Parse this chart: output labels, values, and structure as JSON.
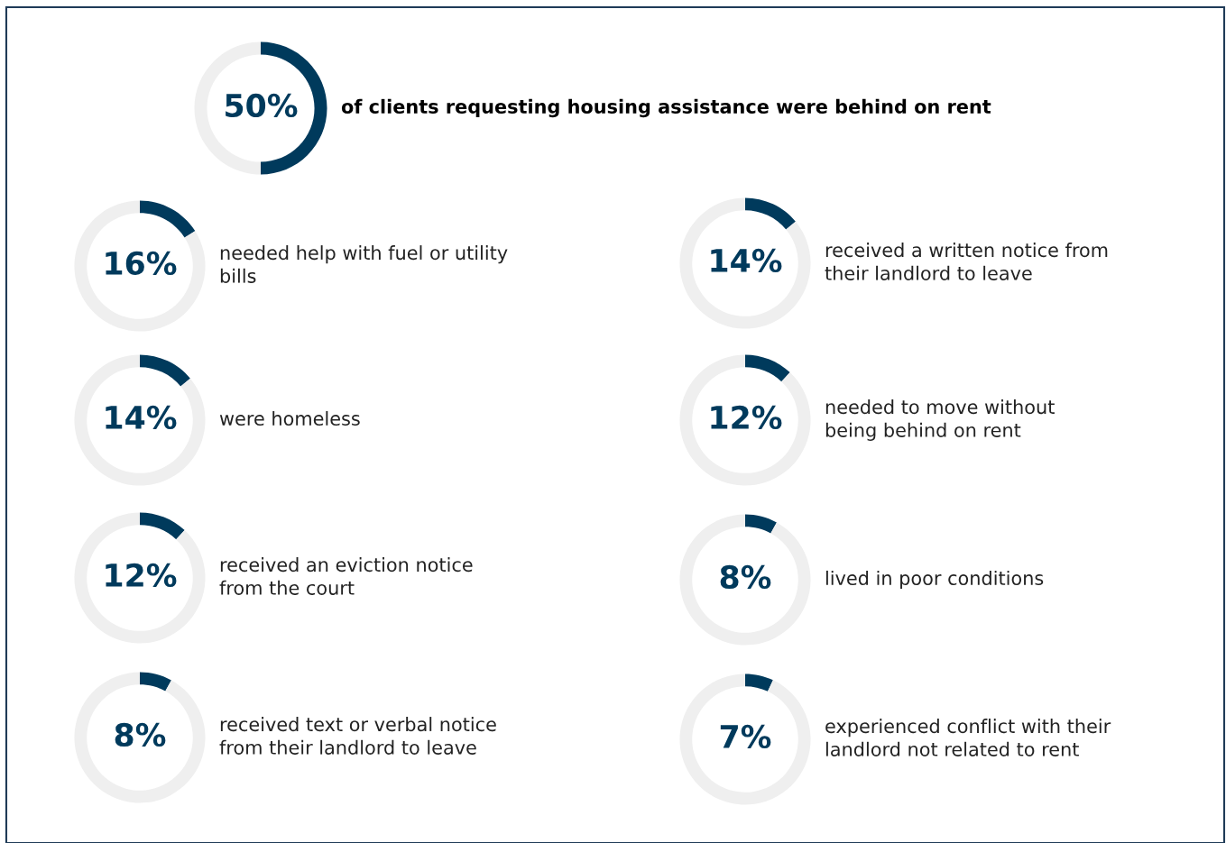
{
  "chart_data": [
    {
      "type": "donut",
      "categories": [
        null,
        null
      ],
      "values": [
        50,
        50
      ],
      "colors": [
        "#003a5c",
        "#efefef"
      ],
      "value_labels": [
        "50%",
        null
      ],
      "annotations": [
        "of clients requesting housing assistance were behind on rent"
      ]
    },
    {
      "type": "donut",
      "categories": [
        null,
        null
      ],
      "values": [
        16,
        84
      ],
      "colors": [
        "#003a5c",
        "#efefef"
      ],
      "value_labels": [
        "16%",
        null
      ],
      "annotations": [
        "needed help with fuel or utility\nbills"
      ]
    },
    {
      "type": "donut",
      "categories": [
        null,
        null
      ],
      "values": [
        14,
        86
      ],
      "colors": [
        "#003a5c",
        "#efefef"
      ],
      "value_labels": [
        "14%",
        null
      ],
      "annotations": [
        "received a written notice from\ntheir landlord to leave"
      ]
    },
    {
      "type": "donut",
      "categories": [
        null,
        null
      ],
      "values": [
        14,
        86
      ],
      "colors": [
        "#003a5c",
        "#efefef"
      ],
      "value_labels": [
        "14%",
        null
      ],
      "annotations": [
        "were homeless"
      ]
    },
    {
      "type": "donut",
      "categories": [
        null,
        null
      ],
      "values": [
        12,
        88
      ],
      "colors": [
        "#003a5c",
        "#efefef"
      ],
      "value_labels": [
        "12%",
        null
      ],
      "annotations": [
        "needed to move without\nbeing behind on rent"
      ]
    },
    {
      "type": "donut",
      "categories": [
        null,
        null
      ],
      "values": [
        12,
        88
      ],
      "colors": [
        "#003a5c",
        "#efefef"
      ],
      "value_labels": [
        "12%",
        null
      ],
      "annotations": [
        "received an eviction notice\nfrom the court"
      ]
    },
    {
      "type": "donut",
      "categories": [
        null,
        null
      ],
      "values": [
        8,
        92
      ],
      "colors": [
        "#003a5c",
        "#efefef"
      ],
      "value_labels": [
        "8%",
        null
      ],
      "annotations": [
        "lived in poor conditions"
      ]
    },
    {
      "type": "donut",
      "categories": [
        null,
        null
      ],
      "values": [
        8,
        92
      ],
      "colors": [
        "#003a5c",
        "#efefef"
      ],
      "value_labels": [
        "8%",
        null
      ],
      "annotations": [
        "received text or verbal notice\nfrom their landlord to leave"
      ]
    },
    {
      "type": "donut",
      "categories": [
        null,
        null
      ],
      "values": [
        7,
        93
      ],
      "colors": [
        "#003a5c",
        "#efefef"
      ],
      "value_labels": [
        "7%",
        null
      ],
      "annotations": [
        "experienced conflict with their\nlandlord not related to rent"
      ]
    }
  ]
}
